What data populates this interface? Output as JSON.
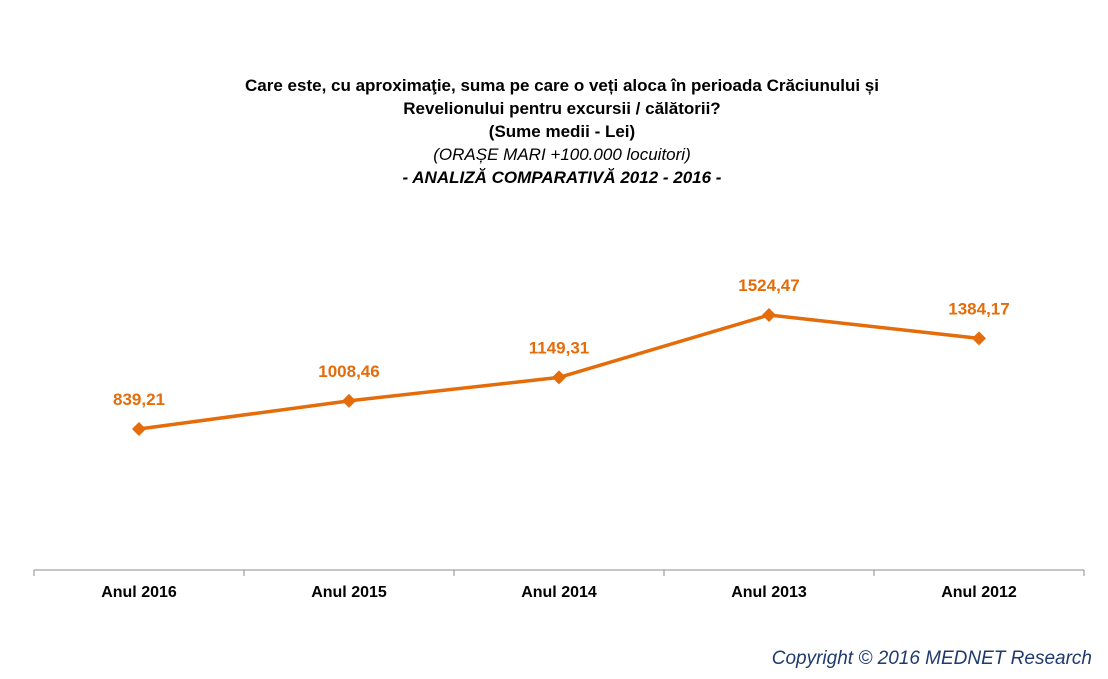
{
  "header": {
    "title_line1": "Care este, cu aproximaţie, suma pe care o veți aloca în perioada Crăciunului și",
    "title_line2": "Revelionului pentru excursii / călătorii?",
    "title_line3": "(Sume medii - Lei)",
    "subtitle": "(ORAȘE MARI +100.000 locuitori)",
    "analysis": "- ANALIZĂ COMPARATIVĂ 2012 - 2016 -"
  },
  "chart_data": {
    "type": "line",
    "categories": [
      "Anul 2016",
      "Anul 2015",
      "Anul 2014",
      "Anul 2013",
      "Anul 2012"
    ],
    "values": [
      839.21,
      1008.46,
      1149.31,
      1524.47,
      1384.17
    ],
    "data_labels": [
      "839,21",
      "1008,46",
      "1149,31",
      "1524,47",
      "1384,17"
    ],
    "color": "#e46c0a",
    "marker": "diamond",
    "grid": false,
    "legend": "none"
  },
  "footer": {
    "copyright": "Copyright ©  2016 MEDNET Research"
  }
}
